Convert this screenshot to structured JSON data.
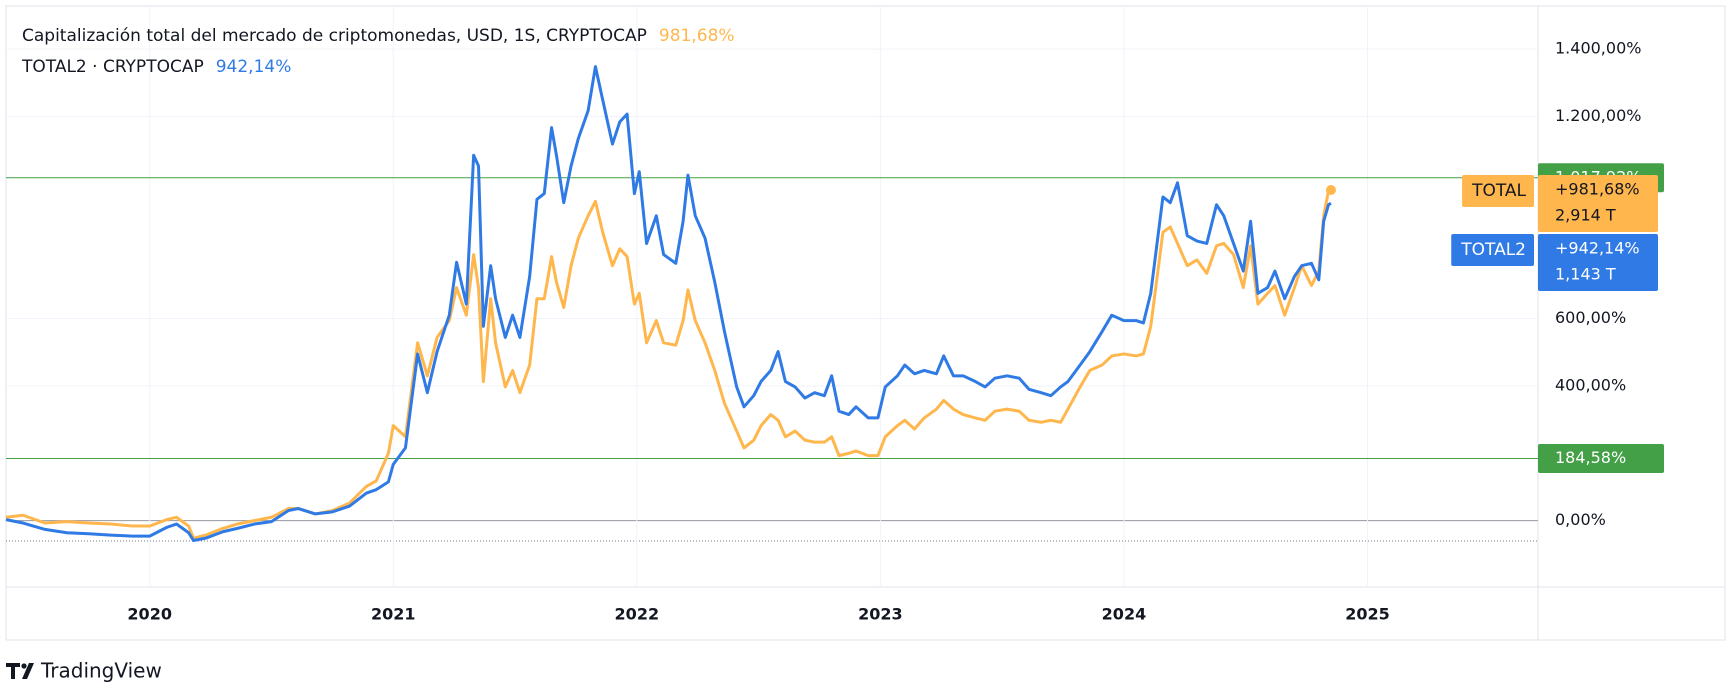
{
  "chart_data": {
    "type": "line",
    "grid": true,
    "xlim": [
      2019.41,
      2025.7
    ],
    "xticks": [
      2020,
      2021,
      2022,
      2023,
      2024,
      2025
    ],
    "ylim": [
      -197,
      1528
    ],
    "yticks": [
      {
        "value": 0,
        "label": "0,00%"
      },
      {
        "value": 400,
        "label": "400,00%"
      },
      {
        "value": 600,
        "label": "600,00%"
      },
      {
        "value": 1200,
        "label": "1.200,00%"
      },
      {
        "value": 1400,
        "label": "1.400,00%"
      }
    ],
    "horizontal_lines": [
      {
        "value": 1017.92,
        "label": "1.017,92%",
        "color": "#43a047"
      },
      {
        "value": 184.58,
        "label": "184,58%",
        "color": "#43a047"
      }
    ],
    "x": [
      2019.41,
      2019.48,
      2019.57,
      2019.66,
      2019.75,
      2019.84,
      2019.93,
      2020.0,
      2020.07,
      2020.11,
      2020.16,
      2020.18,
      2020.23,
      2020.3,
      2020.36,
      2020.43,
      2020.5,
      2020.57,
      2020.61,
      2020.68,
      2020.75,
      2020.82,
      2020.89,
      2020.93,
      2020.98,
      2021.0,
      2021.05,
      2021.1,
      2021.14,
      2021.18,
      2021.23,
      2021.26,
      2021.3,
      2021.33,
      2021.35,
      2021.37,
      2021.4,
      2021.42,
      2021.46,
      2021.49,
      2021.52,
      2021.56,
      2021.59,
      2021.62,
      2021.65,
      2021.67,
      2021.7,
      2021.73,
      2021.76,
      2021.8,
      2021.83,
      2021.86,
      2021.9,
      2021.93,
      2021.96,
      2021.99,
      2022.01,
      2022.04,
      2022.08,
      2022.11,
      2022.16,
      2022.19,
      2022.21,
      2022.24,
      2022.28,
      2022.32,
      2022.36,
      2022.41,
      2022.44,
      2022.48,
      2022.51,
      2022.55,
      2022.58,
      2022.61,
      2022.65,
      2022.69,
      2022.73,
      2022.77,
      2022.8,
      2022.83,
      2022.87,
      2022.9,
      2022.95,
      2022.99,
      2023.02,
      2023.07,
      2023.1,
      2023.14,
      2023.18,
      2023.23,
      2023.26,
      2023.3,
      2023.34,
      2023.39,
      2023.43,
      2023.47,
      2023.52,
      2023.57,
      2023.61,
      2023.66,
      2023.7,
      2023.74,
      2023.77,
      2023.82,
      2023.86,
      2023.91,
      2023.95,
      2024.0,
      2024.05,
      2024.08,
      2024.11,
      2024.16,
      2024.19,
      2024.22,
      2024.26,
      2024.3,
      2024.34,
      2024.38,
      2024.41,
      2024.45,
      2024.49,
      2024.52,
      2024.55,
      2024.59,
      2024.62,
      2024.66,
      2024.7,
      2024.73,
      2024.77,
      2024.8,
      2024.82,
      2024.84,
      2024.85
    ],
    "series": [
      {
        "name": "TOTAL",
        "legend_label": "Capitalización total del mercado de criptomonedas, USD, 1S, CRYPTOCAP",
        "last_label": "981,68%",
        "scale_label": "+981,68%",
        "market_cap": "2,914 T",
        "color": "#ffb74d",
        "text_color": "#131722",
        "values": [
          10,
          16,
          -7,
          -3,
          -7,
          -10,
          -16,
          -16,
          3,
          10,
          -16,
          -52,
          -43,
          -23,
          -10,
          0,
          10,
          36,
          36,
          20,
          30,
          52,
          102,
          118,
          200,
          282,
          249,
          528,
          430,
          544,
          594,
          692,
          610,
          790,
          692,
          413,
          659,
          528,
          397,
          446,
          380,
          462,
          659,
          659,
          784,
          708,
          633,
          757,
          839,
          905,
          948,
          856,
          757,
          807,
          784,
          643,
          675,
          528,
          594,
          528,
          521,
          594,
          685,
          594,
          528,
          446,
          348,
          266,
          216,
          239,
          282,
          315,
          298,
          249,
          266,
          239,
          233,
          233,
          249,
          193,
          200,
          207,
          193,
          193,
          249,
          282,
          298,
          272,
          305,
          331,
          357,
          331,
          315,
          305,
          298,
          325,
          331,
          325,
          298,
          292,
          298,
          292,
          331,
          397,
          446,
          462,
          489,
          495,
          489,
          495,
          577,
          856,
          872,
          823,
          757,
          774,
          734,
          816,
          823,
          790,
          692,
          816,
          643,
          675,
          698,
          610,
          692,
          757,
          698,
          741,
          905,
          980,
          981.68
        ]
      },
      {
        "name": "TOTAL2",
        "legend_label": "TOTAL2 · CRYPTOCAP",
        "last_label": "942,14%",
        "scale_label": "+942,14%",
        "market_cap": "1,143 T",
        "color": "#2f7ae5",
        "text_color": "#ffffff",
        "values": [
          3,
          -7,
          -26,
          -36,
          -39,
          -43,
          -46,
          -46,
          -20,
          -10,
          -36,
          -59,
          -52,
          -33,
          -23,
          -10,
          -3,
          30,
          36,
          20,
          26,
          43,
          82,
          92,
          115,
          167,
          216,
          495,
          380,
          502,
          610,
          767,
          643,
          1085,
          1053,
          577,
          757,
          659,
          544,
          610,
          544,
          725,
          954,
          971,
          1167,
          1085,
          944,
          1053,
          1135,
          1217,
          1348,
          1249,
          1118,
          1184,
          1207,
          971,
          1036,
          823,
          905,
          790,
          764,
          889,
          1026,
          905,
          839,
          708,
          561,
          397,
          338,
          371,
          413,
          446,
          502,
          413,
          397,
          364,
          380,
          371,
          430,
          325,
          315,
          338,
          305,
          305,
          397,
          430,
          462,
          436,
          446,
          436,
          489,
          430,
          430,
          413,
          397,
          423,
          430,
          423,
          390,
          380,
          371,
          397,
          413,
          462,
          502,
          561,
          610,
          594,
          594,
          587,
          675,
          961,
          944,
          1003,
          846,
          830,
          823,
          938,
          905,
          823,
          741,
          889,
          675,
          692,
          741,
          659,
          725,
          757,
          764,
          715,
          889,
          938,
          942.14
        ]
      }
    ]
  },
  "branding": "TradingView"
}
